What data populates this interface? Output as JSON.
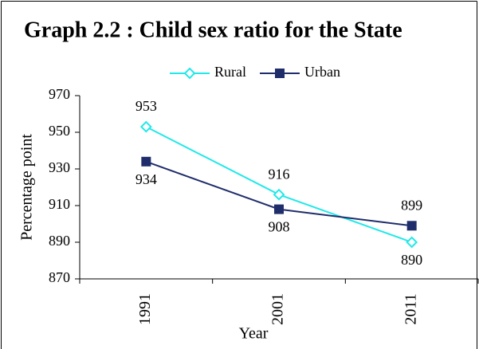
{
  "chart_data": {
    "type": "line",
    "title": "Graph 2.2 : Child sex ratio for the State",
    "xlabel": "Year",
    "ylabel": "Percentage point",
    "categories": [
      "1991",
      "2001",
      "2011"
    ],
    "series": [
      {
        "name": "Rural",
        "color": "#22e8e8",
        "marker": "diamond",
        "values": [
          953,
          916,
          890
        ]
      },
      {
        "name": "Urban",
        "color": "#1f2d6b",
        "marker": "square",
        "values": [
          934,
          908,
          899
        ]
      }
    ],
    "ylim": [
      870,
      970
    ],
    "yticks": [
      870,
      890,
      910,
      930,
      950,
      970
    ],
    "legend": "top"
  }
}
